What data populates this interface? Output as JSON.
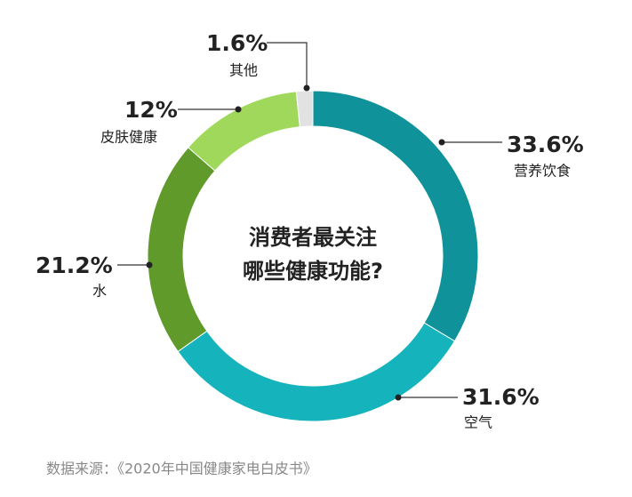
{
  "chart_data": {
    "type": "donut",
    "center_text": [
      "消费者最关注",
      "哪些健康功能?"
    ],
    "categories": [
      "营养饮食",
      "空气",
      "水",
      "皮肤健康",
      "其他"
    ],
    "values": [
      33.6,
      31.6,
      21.2,
      12,
      1.6
    ],
    "value_labels": [
      "33.6%",
      "31.6%",
      "21.2%",
      "12%",
      "1.6%"
    ],
    "colors": [
      "#0f9299",
      "#15b4bd",
      "#5f9a2b",
      "#9fd85b",
      "#e2e2e2"
    ],
    "source": "数据来源：《2020年中国健康家电白皮书》"
  }
}
